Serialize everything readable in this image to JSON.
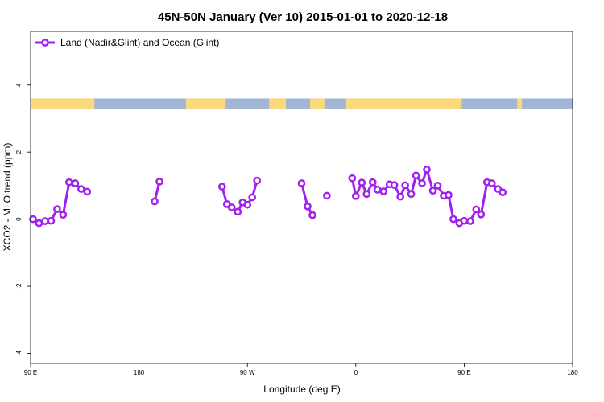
{
  "chart_data": {
    "type": "line",
    "title": "45N-50N January (Ver 10)   2015-01-01 to 2020-12-18",
    "xlabel": "Longitude (deg E)",
    "ylabel": "XCO2 - MLO trend (ppm)",
    "xlim": [
      90,
      540
    ],
    "ylim": [
      -4.3,
      5.6
    ],
    "x_ticks": [
      {
        "value": 90,
        "label": "90 E"
      },
      {
        "value": 180,
        "label": "180"
      },
      {
        "value": 270,
        "label": "90 W"
      },
      {
        "value": 360,
        "label": "0"
      },
      {
        "value": 450,
        "label": "90 E"
      },
      {
        "value": 540,
        "label": "180"
      }
    ],
    "y_ticks": [
      {
        "value": -4,
        "label": "-4"
      },
      {
        "value": -2,
        "label": "-2"
      },
      {
        "value": 0,
        "label": "0"
      },
      {
        "value": 2,
        "label": "2"
      },
      {
        "value": 4,
        "label": "4"
      }
    ],
    "legend": {
      "position": "top-left"
    },
    "colors": {
      "series": "#a020f0",
      "land": "#fad97a",
      "ocean": "#a2b5d6"
    },
    "land_ocean_band": {
      "y_range": [
        3.3,
        3.6
      ],
      "land_segments": [
        [
          90,
          143
        ],
        [
          219,
          252
        ],
        [
          288,
          302
        ],
        [
          322,
          334
        ],
        [
          352,
          448
        ],
        [
          494,
          498
        ]
      ]
    },
    "series": [
      {
        "name": "Land (Nadir&Glint) and Ocean (Glint)",
        "segments": [
          {
            "x": [
              92,
              97,
              102,
              107,
              112,
              117,
              122,
              127,
              132,
              137
            ],
            "y": [
              0.0,
              -0.12,
              -0.06,
              -0.05,
              0.3,
              0.13,
              1.1,
              1.07,
              0.9,
              0.82
            ]
          },
          {
            "x": [
              193,
              197
            ],
            "y": [
              0.53,
              1.12
            ]
          },
          {
            "x": [
              249,
              253,
              257,
              262,
              266,
              270,
              274,
              278
            ],
            "y": [
              0.97,
              0.45,
              0.35,
              0.22,
              0.5,
              0.43,
              0.65,
              1.15
            ]
          },
          {
            "x": [
              315,
              320,
              324
            ],
            "y": [
              1.07,
              0.38,
              0.12
            ]
          },
          {
            "x": [
              336
            ],
            "y": [
              0.7
            ]
          },
          {
            "x": [
              357,
              360,
              365,
              369,
              374,
              378,
              383,
              388,
              392,
              397,
              401,
              406,
              410,
              415,
              419,
              424,
              428,
              433,
              437,
              441,
              446,
              450,
              455,
              460,
              464,
              469,
              473,
              478,
              482,
              487,
              492,
              496,
              501,
              506
            ],
            "y": [
              1.22,
              0.69,
              1.09,
              0.75,
              1.1,
              0.88,
              0.83,
              1.04,
              1.02,
              0.67,
              1.01,
              0.75,
              1.3,
              1.07,
              1.48,
              0.85,
              1.0,
              0.7,
              0.72,
              0.0,
              -0.12,
              -0.05,
              -0.06,
              0.29,
              0.14,
              1.1,
              1.07,
              0.9,
              0.8,
              null,
              null,
              null,
              null,
              null
            ]
          }
        ]
      }
    ]
  }
}
